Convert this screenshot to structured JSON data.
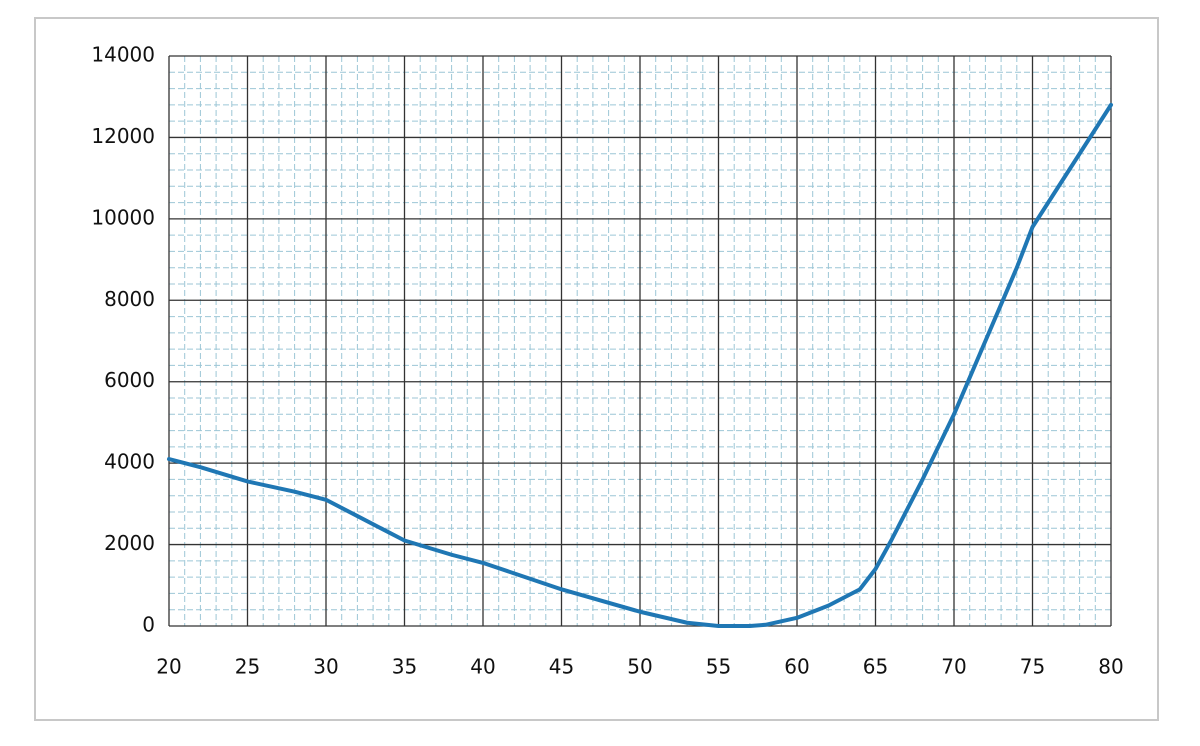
{
  "chart_data": {
    "type": "line",
    "x": [
      20,
      22,
      25,
      28,
      30,
      32,
      35,
      38,
      40,
      45,
      50,
      53,
      55,
      57,
      58,
      60,
      62,
      64,
      65,
      66,
      68,
      70,
      72,
      74,
      75,
      77,
      80
    ],
    "series": [
      {
        "color": "#1f77b4",
        "values": [
          4100,
          3900,
          3550,
          3300,
          3100,
          2700,
          2100,
          1750,
          1550,
          900,
          350,
          80,
          0,
          0,
          30,
          200,
          500,
          900,
          1400,
          2100,
          3600,
          5200,
          7000,
          8800,
          9800,
          11000,
          12800
        ]
      }
    ],
    "xlim": [
      20,
      80
    ],
    "xticks": [
      20,
      25,
      30,
      35,
      40,
      45,
      50,
      55,
      60,
      65,
      70,
      75,
      80
    ],
    "ylim": [
      0,
      14000
    ],
    "yticks": [
      0,
      2000,
      4000,
      6000,
      8000,
      10000,
      12000,
      14000
    ],
    "grid": true,
    "minor_grid": true
  }
}
